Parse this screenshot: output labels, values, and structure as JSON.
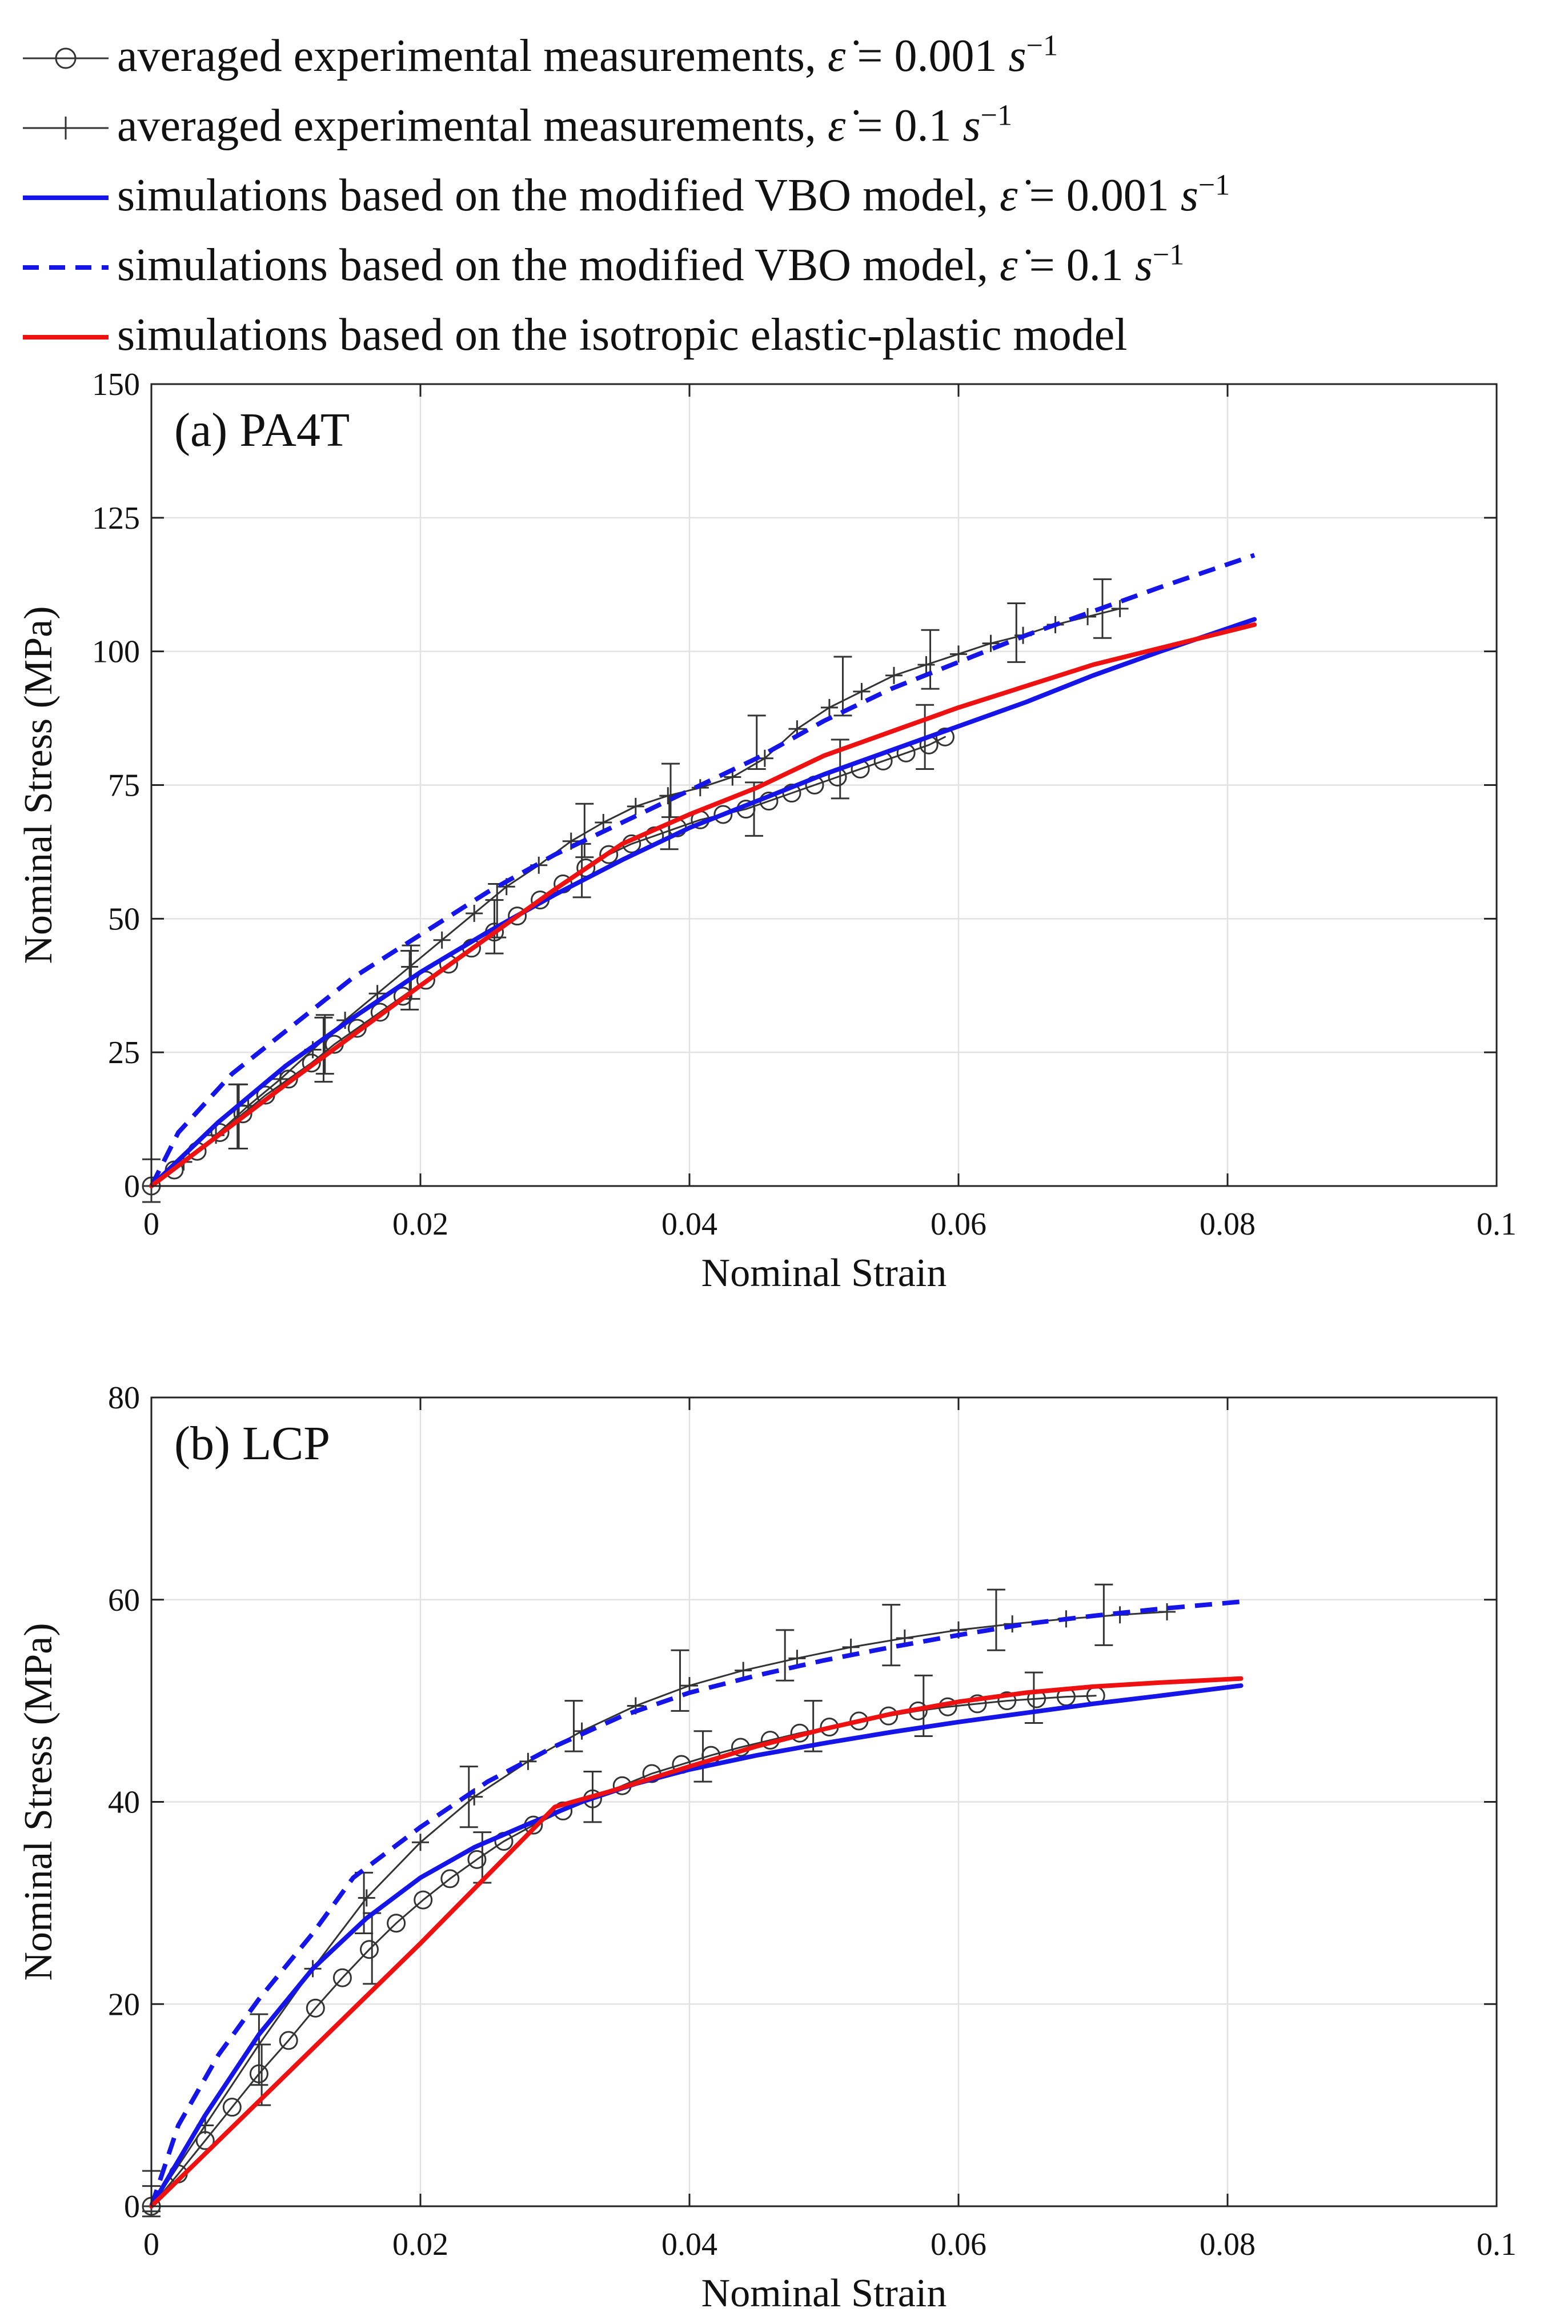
{
  "legend": {
    "entries": [
      {
        "key": "exp_slow",
        "prefix": "averaged experimental measurements, ",
        "rate": "0.001",
        "unit": "s",
        "exponent": "−1"
      },
      {
        "key": "exp_fast",
        "prefix": "averaged experimental measurements, ",
        "rate": "0.1",
        "unit": "s",
        "exponent": "−1"
      },
      {
        "key": "vbo_slow",
        "prefix": "simulations based on the modified VBO model, ",
        "rate": "0.001",
        "unit": "s",
        "exponent": "−1"
      },
      {
        "key": "vbo_fast",
        "prefix": "simulations based on the modified VBO model, ",
        "rate": "0.1",
        "unit": "s",
        "exponent": "−1"
      },
      {
        "key": "iso",
        "prefix": "simulations based on the isotropic elastic-plastic model",
        "rate": "",
        "unit": "",
        "exponent": ""
      }
    ]
  },
  "colors": {
    "experiment": "#333333",
    "vbo": "#1515e8",
    "iso": "#ee1111",
    "grid": "#e2e2e2",
    "axis": "#222222"
  },
  "chart_data": [
    {
      "type": "line",
      "panel_label": "(a) PA4T",
      "xlabel": "Nominal Strain",
      "ylabel": "Nominal Stress (MPa)",
      "xlim": [
        0,
        0.1
      ],
      "ylim": [
        0,
        150
      ],
      "xticks": [
        0,
        0.02,
        0.04,
        0.06,
        0.08,
        0.1
      ],
      "xtick_labels": [
        "0",
        "0.02",
        "0.04",
        "0.06",
        "0.08",
        "0.1"
      ],
      "yticks": [
        0,
        25,
        50,
        75,
        100,
        125,
        150
      ],
      "ytick_labels": [
        "0",
        "25",
        "50",
        "75",
        "100",
        "125",
        "150"
      ],
      "grid": true,
      "series": [
        {
          "name": "averaged experimental measurements, 0.001 s^-1",
          "style": "exp_slow",
          "x": [
            0,
            0.0017,
            0.0034,
            0.0051,
            0.0068,
            0.0085,
            0.0102,
            0.0119,
            0.0136,
            0.0153,
            0.017,
            0.0187,
            0.0204,
            0.0221,
            0.0238,
            0.0255,
            0.0272,
            0.0289,
            0.0306,
            0.0323,
            0.034,
            0.0357,
            0.0374,
            0.0391,
            0.0408,
            0.0425,
            0.0442,
            0.0459,
            0.0476,
            0.0493,
            0.051,
            0.0527,
            0.0544,
            0.0561,
            0.0578,
            0.059
          ],
          "y": [
            0,
            3,
            6.5,
            10,
            13.5,
            17,
            20,
            23,
            26.5,
            29.5,
            32.5,
            35.5,
            38.5,
            41.5,
            44.5,
            47.5,
            50.5,
            53.5,
            56.5,
            59.5,
            62,
            64,
            65.5,
            67,
            68.5,
            69.5,
            70.5,
            72,
            73.5,
            75,
            76.5,
            78,
            79.5,
            81,
            82.5,
            84
          ],
          "errorbars": [
            {
              "x": 0.0065,
              "y": 13,
              "err": 6
            },
            {
              "x": 0.0128,
              "y": 25.5,
              "err": 6
            },
            {
              "x": 0.0192,
              "y": 38.5,
              "err": 5.5
            },
            {
              "x": 0.0255,
              "y": 48.5,
              "err": 5
            },
            {
              "x": 0.032,
              "y": 59,
              "err": 5
            },
            {
              "x": 0.0385,
              "y": 68,
              "err": 5
            },
            {
              "x": 0.0448,
              "y": 70.5,
              "err": 5
            },
            {
              "x": 0.0512,
              "y": 78,
              "err": 5.5
            },
            {
              "x": 0.0575,
              "y": 84,
              "err": 6
            }
          ]
        },
        {
          "name": "averaged experimental measurements, 0.1 s^-1",
          "style": "exp_fast",
          "x": [
            0,
            0.0024,
            0.0048,
            0.0072,
            0.0096,
            0.012,
            0.0144,
            0.0168,
            0.0192,
            0.0216,
            0.024,
            0.0264,
            0.0288,
            0.0312,
            0.0336,
            0.036,
            0.0384,
            0.0408,
            0.0432,
            0.0456,
            0.048,
            0.0504,
            0.0528,
            0.0552,
            0.0576,
            0.06,
            0.0624,
            0.0648,
            0.0672,
            0.0696,
            0.072
          ],
          "y": [
            0,
            4.5,
            9.5,
            15,
            20,
            25.5,
            31,
            36,
            41,
            46,
            51,
            56,
            60,
            64.5,
            68,
            71,
            73,
            74.5,
            76.5,
            80,
            85.5,
            89.5,
            92.5,
            95.5,
            97.5,
            99.5,
            101.5,
            103,
            105,
            106.5,
            108
          ],
          "errorbars": [
            {
              "x": 0,
              "y": 1,
              "err": 4
            },
            {
              "x": 0.0064,
              "y": 13,
              "err": 6
            },
            {
              "x": 0.0129,
              "y": 26.5,
              "err": 5.5
            },
            {
              "x": 0.0193,
              "y": 40,
              "err": 5
            },
            {
              "x": 0.0257,
              "y": 51.5,
              "err": 5
            },
            {
              "x": 0.0322,
              "y": 66.5,
              "err": 5
            },
            {
              "x": 0.0386,
              "y": 74,
              "err": 5
            },
            {
              "x": 0.045,
              "y": 83,
              "err": 5
            },
            {
              "x": 0.0514,
              "y": 93.5,
              "err": 5.5
            },
            {
              "x": 0.0579,
              "y": 98.5,
              "err": 5.5
            },
            {
              "x": 0.0643,
              "y": 103.5,
              "err": 5.5
            },
            {
              "x": 0.0707,
              "y": 108,
              "err": 5.5
            }
          ]
        },
        {
          "name": "simulations based on the modified VBO model, 0.001 s^-1",
          "style": "vbo_slow",
          "x": [
            0,
            0.005,
            0.01,
            0.015,
            0.02,
            0.025,
            0.03,
            0.035,
            0.04,
            0.045,
            0.05,
            0.055,
            0.06,
            0.065,
            0.07,
            0.075,
            0.082
          ],
          "y": [
            0,
            12,
            22.5,
            31.5,
            40,
            47.5,
            54.5,
            61,
            67,
            72,
            77,
            81.5,
            86,
            90.5,
            95.5,
            100,
            106
          ]
        },
        {
          "name": "simulations based on the modified VBO model, 0.1 s^-1",
          "style": "vbo_fast",
          "x": [
            0,
            0.002,
            0.006,
            0.01,
            0.015,
            0.02,
            0.025,
            0.03,
            0.035,
            0.04,
            0.045,
            0.05,
            0.055,
            0.06,
            0.065,
            0.07,
            0.075,
            0.082
          ],
          "y": [
            0,
            10,
            21,
            29,
            39,
            47,
            55,
            62,
            68,
            74,
            80,
            87,
            93,
            98,
            103,
            107.5,
            112,
            118
          ]
        },
        {
          "name": "simulations based on the isotropic elastic-plastic model",
          "style": "iso",
          "x": [
            0,
            0.01,
            0.02,
            0.03,
            0.035,
            0.04,
            0.045,
            0.05,
            0.06,
            0.07,
            0.082
          ],
          "y": [
            0,
            19,
            37.5,
            55.5,
            64,
            69.5,
            74.5,
            80.5,
            89.5,
            97.5,
            105
          ]
        }
      ]
    },
    {
      "type": "line",
      "panel_label": "(b) LCP",
      "xlabel": "Nominal Strain",
      "ylabel": "Nominal Stress (MPa)",
      "xlim": [
        0,
        0.1
      ],
      "ylim": [
        0,
        80
      ],
      "xticks": [
        0,
        0.02,
        0.04,
        0.06,
        0.08,
        0.1
      ],
      "xtick_labels": [
        "0",
        "0.02",
        "0.04",
        "0.06",
        "0.08",
        "0.1"
      ],
      "yticks": [
        0,
        20,
        40,
        60,
        80
      ],
      "ytick_labels": [
        "0",
        "20",
        "40",
        "60",
        "80"
      ],
      "grid": true,
      "series": [
        {
          "name": "averaged experimental measurements, 0.001 s^-1",
          "style": "exp_slow",
          "x": [
            0,
            0.002,
            0.004,
            0.006,
            0.008,
            0.0102,
            0.0122,
            0.0142,
            0.0162,
            0.0182,
            0.0202,
            0.0222,
            0.0242,
            0.0262,
            0.0284,
            0.0306,
            0.0328,
            0.035,
            0.0372,
            0.0394,
            0.0416,
            0.0438,
            0.046,
            0.0482,
            0.0504,
            0.0526,
            0.0548,
            0.057,
            0.0592,
            0.0614,
            0.0636,
            0.0658,
            0.068,
            0.0702
          ],
          "y": [
            0,
            3.2,
            6.5,
            9.8,
            13.1,
            16.4,
            19.6,
            22.6,
            25.4,
            28,
            30.3,
            32.4,
            34.3,
            36.1,
            37.7,
            39.1,
            40.3,
            41.6,
            42.8,
            43.7,
            44.6,
            45.4,
            46.1,
            46.8,
            47.4,
            48,
            48.5,
            49,
            49.4,
            49.7,
            50,
            50.2,
            50.4,
            50.5
          ],
          "errorbars": [
            {
              "x": 0,
              "y": 0.5,
              "err": 1.5
            },
            {
              "x": 0.0082,
              "y": 13,
              "err": 3
            },
            {
              "x": 0.0164,
              "y": 25.5,
              "err": 3.5
            },
            {
              "x": 0.0246,
              "y": 34.5,
              "err": 2.5
            },
            {
              "x": 0.0328,
              "y": 40.5,
              "err": 2.5
            },
            {
              "x": 0.041,
              "y": 44.5,
              "err": 2.5
            },
            {
              "x": 0.0492,
              "y": 47.5,
              "err": 2.5
            },
            {
              "x": 0.0574,
              "y": 49.5,
              "err": 3
            },
            {
              "x": 0.0656,
              "y": 50.3,
              "err": 2.5
            }
          ]
        },
        {
          "name": "averaged experimental measurements, 0.1 s^-1",
          "style": "exp_fast",
          "x": [
            0,
            0.004,
            0.008,
            0.012,
            0.016,
            0.02,
            0.024,
            0.028,
            0.032,
            0.036,
            0.04,
            0.044,
            0.048,
            0.052,
            0.056,
            0.06,
            0.064,
            0.068,
            0.072,
            0.0755
          ],
          "y": [
            0,
            8,
            16,
            23.5,
            30.5,
            36,
            40.5,
            44,
            47,
            49.5,
            51.5,
            53,
            54.2,
            55.3,
            56.2,
            57,
            57.6,
            58.1,
            58.5,
            58.8
          ],
          "errorbars": [
            {
              "x": 0,
              "y": 1.5,
              "err": 2
            },
            {
              "x": 0.008,
              "y": 15.5,
              "err": 3.5
            },
            {
              "x": 0.0158,
              "y": 30,
              "err": 3
            },
            {
              "x": 0.0236,
              "y": 40.5,
              "err": 3
            },
            {
              "x": 0.0314,
              "y": 47.5,
              "err": 2.5
            },
            {
              "x": 0.0393,
              "y": 52,
              "err": 3
            },
            {
              "x": 0.0471,
              "y": 54.5,
              "err": 2.5
            },
            {
              "x": 0.055,
              "y": 56.5,
              "err": 3
            },
            {
              "x": 0.0628,
              "y": 58,
              "err": 3
            },
            {
              "x": 0.0708,
              "y": 58.5,
              "err": 3
            }
          ]
        },
        {
          "name": "simulations based on the modified VBO model, 0.001 s^-1",
          "style": "vbo_slow",
          "x": [
            0,
            0.004,
            0.008,
            0.012,
            0.016,
            0.02,
            0.024,
            0.028,
            0.032,
            0.036,
            0.04,
            0.045,
            0.05,
            0.055,
            0.06,
            0.065,
            0.07,
            0.075,
            0.081
          ],
          "y": [
            0,
            9,
            17,
            23.5,
            28.5,
            32.5,
            35.5,
            37.8,
            40,
            41.8,
            43.2,
            44.6,
            45.8,
            46.9,
            47.9,
            48.8,
            49.7,
            50.5,
            51.5
          ]
        },
        {
          "name": "simulations based on the modified VBO model, 0.1 s^-1",
          "style": "vbo_fast",
          "x": [
            0,
            0.002,
            0.005,
            0.008,
            0.012,
            0.015,
            0.02,
            0.025,
            0.03,
            0.035,
            0.04,
            0.045,
            0.05,
            0.055,
            0.06,
            0.065,
            0.07,
            0.075,
            0.081
          ],
          "y": [
            0,
            8,
            15,
            20.5,
            27,
            32.5,
            37.5,
            42,
            45.5,
            48.5,
            50.8,
            52.5,
            54,
            55.3,
            56.5,
            57.6,
            58.4,
            59.1,
            59.8
          ]
        },
        {
          "name": "simulations based on the isotropic elastic-plastic model",
          "style": "iso",
          "x": [
            0,
            0.01,
            0.02,
            0.03,
            0.034,
            0.04,
            0.045,
            0.05,
            0.055,
            0.06,
            0.065,
            0.07,
            0.075,
            0.081
          ],
          "y": [
            0,
            13,
            26,
            39.5,
            41,
            43.5,
            45.5,
            47.2,
            48.7,
            49.9,
            50.8,
            51.4,
            51.8,
            52.2
          ]
        }
      ]
    }
  ]
}
